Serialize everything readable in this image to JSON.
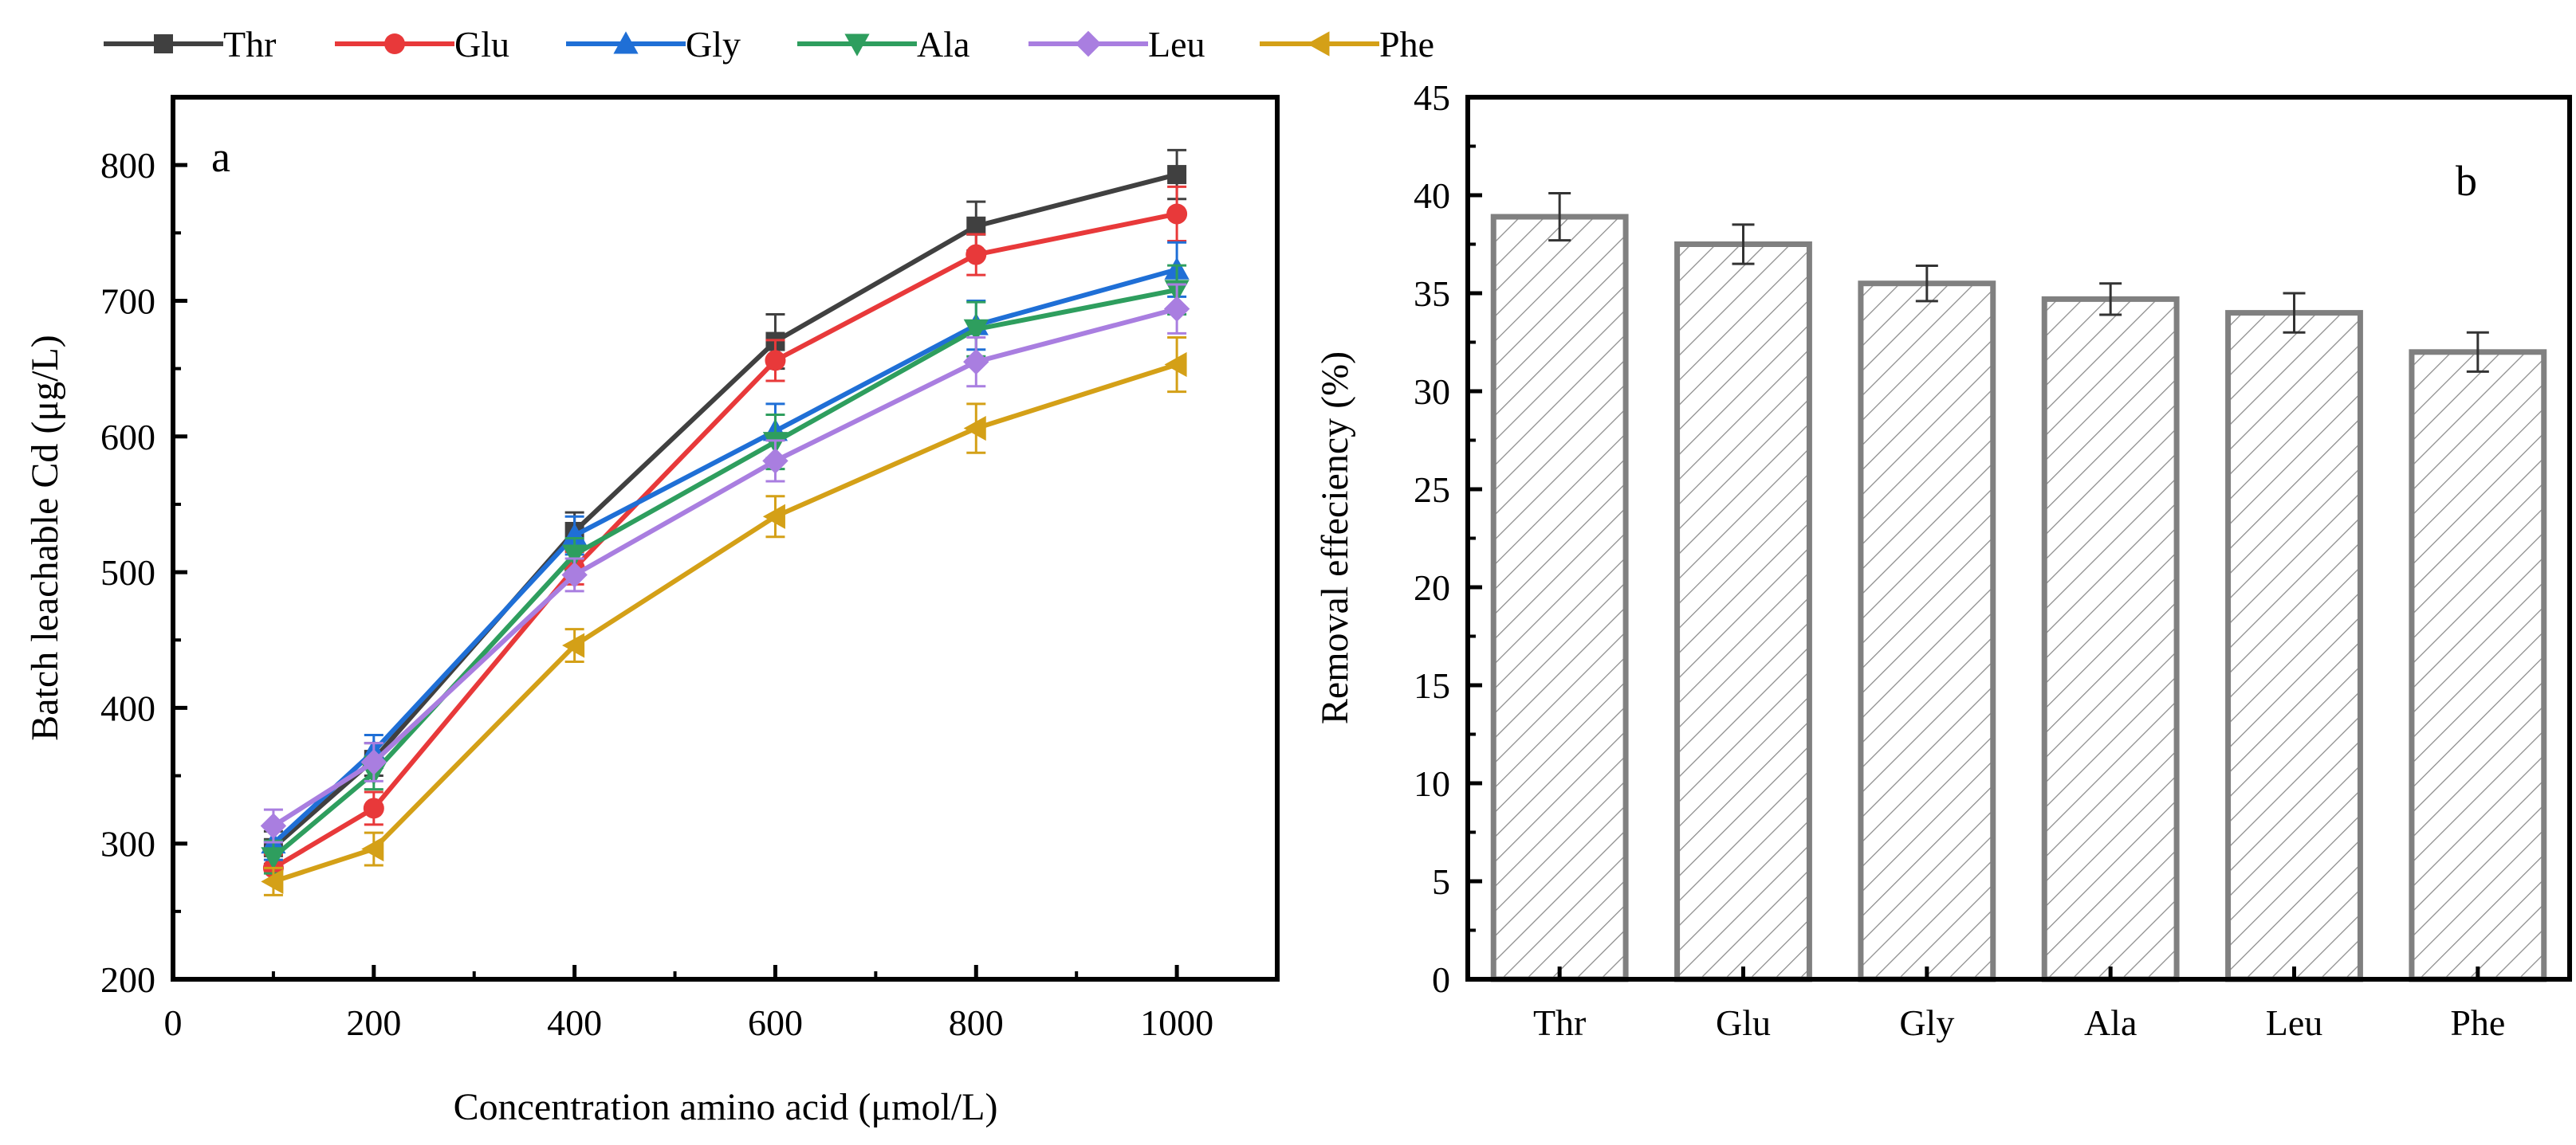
{
  "chart_data": [
    {
      "panel": "a",
      "type": "line",
      "xlabel": "Concentration amino acid (μmol/L)",
      "ylabel": "Batch leachable Cd (μg/L)",
      "xlim": [
        0,
        1100
      ],
      "ylim": [
        200,
        850
      ],
      "xticks": [
        0,
        200,
        400,
        600,
        800,
        1000
      ],
      "yticks": [
        200,
        300,
        400,
        500,
        600,
        700,
        800
      ],
      "x": [
        100,
        200,
        400,
        600,
        800,
        1000
      ],
      "legend_position": "top",
      "series": [
        {
          "name": "Thr",
          "color": "#404040",
          "marker": "square",
          "values": [
            297,
            362,
            530,
            670,
            755,
            793
          ],
          "errors": [
            12,
            12,
            14,
            20,
            18,
            18
          ]
        },
        {
          "name": "Glu",
          "color": "#e8393a",
          "marker": "circle",
          "values": [
            282,
            326,
            503,
            656,
            734,
            764
          ],
          "errors": [
            10,
            12,
            12,
            15,
            15,
            20
          ]
        },
        {
          "name": "Gly",
          "color": "#1f6fd6",
          "marker": "triangle-up",
          "values": [
            300,
            368,
            527,
            604,
            682,
            723
          ],
          "errors": [
            12,
            12,
            14,
            20,
            18,
            20
          ]
        },
        {
          "name": "Ala",
          "color": "#2e9e5e",
          "marker": "triangle-down",
          "values": [
            290,
            352,
            513,
            596,
            679,
            708
          ],
          "errors": [
            12,
            12,
            12,
            20,
            20,
            18
          ]
        },
        {
          "name": "Leu",
          "color": "#a97ee0",
          "marker": "diamond",
          "values": [
            313,
            360,
            498,
            582,
            655,
            694
          ],
          "errors": [
            12,
            14,
            12,
            15,
            18,
            18
          ]
        },
        {
          "name": "Phe",
          "color": "#d4a017",
          "marker": "left-triangle",
          "values": [
            272,
            296,
            446,
            541,
            606,
            653
          ],
          "errors": [
            10,
            12,
            12,
            15,
            18,
            20
          ]
        }
      ]
    },
    {
      "panel": "b",
      "type": "bar",
      "xlabel": "",
      "ylabel": "Removal effeciency (%)",
      "ylim": [
        0,
        45
      ],
      "yticks": [
        0,
        5,
        10,
        15,
        20,
        25,
        30,
        35,
        40,
        45
      ],
      "categories": [
        "Thr",
        "Glu",
        "Gly",
        "Ala",
        "Leu",
        "Phe"
      ],
      "values": [
        38.9,
        37.5,
        35.5,
        34.7,
        34.0,
        32.0
      ],
      "errors": [
        1.2,
        1.0,
        0.9,
        0.8,
        1.0,
        1.0
      ],
      "bar_fill": "hatched",
      "bar_color": "#808080"
    }
  ]
}
